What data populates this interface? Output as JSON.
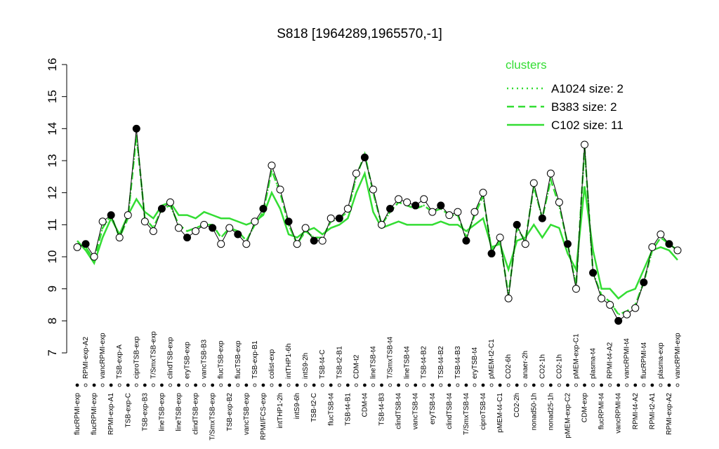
{
  "chart_data": {
    "type": "line",
    "title": "S818 [1964289,1965570,-1]",
    "legend_title": "clusters",
    "ylim": [
      7,
      16
    ],
    "yticks": [
      7,
      8,
      9,
      10,
      11,
      12,
      13,
      14,
      15,
      16
    ],
    "categories": [
      "flucRPMI-exp",
      "RPMI-exp-A2",
      "flucRPMI-exp",
      "vancRPMI-exp",
      "RPMI-exp-A1",
      "TSB-exp-A",
      "TSB-exp-C",
      "ciproTSB-exp",
      "TSB-exp-B3",
      "T/SmxTSB-exp",
      "lineTSB-exp",
      "clindTSB-exp",
      "lineTSB-exp",
      "eryTSB-exp",
      "clindTSB-exp",
      "vancTSB-B3",
      "T/SmxTSB-exp",
      "flucTSB-exp",
      "TSB-exp-B2",
      "flucTSB-exp",
      "vancTSB-exp",
      "TSB-exp-B1",
      "RPMI/FCS-exp",
      "colist-exp",
      "intTHP1-2h",
      "intTHP1-6h",
      "intS9-6h",
      "intS9-2h",
      "TSB-t2-C",
      "TSB-t4-C",
      "flucTSB-t4",
      "TSB-t2-B1",
      "TSB-t4-B1",
      "CDM-t2",
      "CDM-t4",
      "lineTSB-t4",
      "TSB-t4-B3",
      "T/SmxTSB-t4",
      "clindTSB-t4",
      "lineTSB-t4",
      "vancTSB-t4",
      "TSB-t4-B2",
      "eryTSB-t4",
      "TSB-t4-B2",
      "clindTSB-t4",
      "TSB-t4-B3",
      "T/SmxTSB-t4",
      "eryTSB-t4",
      "ciproTSB-t4",
      "pMEM-t2-C1",
      "pMEM-t4-C1",
      "CO2-6h",
      "CO2-2h",
      "anaer-2h",
      "nonad50-1h",
      "CO2-1h",
      "nonad25-1h",
      "CO2-1h",
      "pMEM-exp-C2",
      "pMEM-exp-C1",
      "CDM-exp",
      "plasma-t4",
      "flucRPMI-t4",
      "RPMI-t4-A2",
      "vancRPMI-t4",
      "vancRPMI-t4",
      "RPMI-t4-A2",
      "flucRPMI-t4",
      "RPMI-t2-A1",
      "plasma-exp",
      "RPMI-exp-A2",
      "vancRPMI-exp"
    ],
    "values": [
      10.3,
      10.4,
      10.0,
      11.1,
      11.3,
      10.6,
      11.3,
      14.0,
      11.1,
      10.8,
      11.5,
      11.7,
      10.9,
      10.6,
      10.8,
      11.0,
      10.9,
      10.4,
      10.9,
      10.7,
      10.4,
      11.1,
      11.5,
      12.85,
      12.1,
      11.1,
      10.4,
      10.9,
      10.5,
      10.5,
      11.2,
      11.2,
      11.5,
      12.6,
      13.1,
      12.1,
      11.0,
      11.5,
      11.8,
      11.7,
      11.6,
      11.8,
      11.4,
      11.6,
      11.3,
      11.4,
      10.5,
      11.4,
      12.0,
      10.1,
      10.6,
      8.7,
      11.0,
      10.4,
      12.3,
      11.2,
      12.6,
      11.7,
      10.4,
      9.0,
      13.5,
      9.5,
      8.7,
      8.5,
      8.0,
      8.2,
      8.4,
      9.2,
      10.3,
      10.7,
      10.4,
      10.2
    ],
    "series": [
      {
        "name": "A1024 size: 2",
        "color": "#33dd33",
        "style": "dotted",
        "values": [
          10.4,
          10.3,
          9.9,
          10.9,
          11.3,
          10.6,
          11.2,
          13.8,
          11.2,
          10.9,
          11.5,
          11.6,
          11.0,
          10.8,
          10.9,
          11.0,
          11.0,
          10.6,
          10.9,
          10.8,
          10.5,
          11.0,
          11.4,
          12.7,
          12.0,
          11.0,
          10.4,
          10.8,
          10.6,
          10.6,
          11.1,
          11.2,
          11.4,
          12.5,
          13.2,
          12.0,
          11.0,
          11.4,
          11.7,
          11.6,
          11.5,
          11.6,
          11.4,
          11.5,
          11.3,
          11.3,
          10.6,
          11.3,
          11.9,
          10.2,
          10.5,
          8.8,
          10.9,
          10.5,
          12.2,
          11.2,
          12.4,
          11.6,
          10.4,
          9.1,
          13.4,
          9.5,
          8.8,
          8.6,
          8.2,
          8.3,
          8.5,
          9.2,
          10.2,
          10.6,
          10.4,
          10.2
        ]
      },
      {
        "name": "B383 size: 2",
        "color": "#33dd33",
        "style": "dashed",
        "values": [
          10.4,
          10.3,
          9.9,
          10.9,
          11.3,
          10.6,
          11.2,
          13.8,
          11.2,
          10.9,
          11.5,
          11.6,
          11.0,
          10.8,
          10.9,
          11.0,
          11.0,
          10.6,
          10.9,
          10.8,
          10.5,
          11.0,
          11.4,
          12.7,
          12.0,
          11.0,
          10.4,
          10.8,
          10.6,
          10.6,
          11.1,
          11.2,
          11.4,
          12.5,
          13.2,
          12.0,
          11.0,
          11.4,
          11.7,
          11.6,
          11.5,
          11.6,
          11.4,
          11.5,
          11.3,
          11.3,
          10.6,
          11.3,
          11.9,
          10.2,
          10.5,
          8.8,
          10.9,
          10.5,
          12.2,
          11.2,
          12.4,
          11.6,
          10.4,
          9.1,
          13.4,
          9.5,
          8.8,
          8.6,
          8.2,
          8.3,
          8.5,
          9.2,
          10.2,
          10.6,
          10.4,
          10.2
        ]
      },
      {
        "name": "C102 size: 11",
        "color": "#33dd33",
        "style": "solid",
        "values": [
          10.5,
          10.2,
          9.8,
          10.6,
          11.2,
          10.7,
          11.3,
          11.8,
          11.4,
          11.2,
          11.6,
          11.7,
          11.3,
          11.3,
          11.2,
          11.4,
          11.3,
          11.2,
          11.2,
          11.1,
          11.0,
          11.1,
          11.3,
          12.0,
          11.5,
          10.7,
          10.6,
          10.8,
          10.9,
          10.7,
          10.9,
          11.0,
          11.2,
          12.0,
          12.6,
          11.4,
          10.9,
          11.0,
          11.1,
          11.0,
          11.0,
          11.0,
          11.0,
          11.1,
          11.0,
          11.0,
          10.8,
          11.0,
          11.2,
          10.3,
          10.4,
          9.6,
          10.5,
          10.6,
          11.0,
          10.6,
          11.0,
          10.9,
          10.1,
          9.6,
          12.2,
          10.2,
          9.0,
          9.0,
          8.7,
          8.9,
          9.0,
          9.6,
          10.2,
          10.3,
          10.2,
          9.9
        ]
      }
    ]
  }
}
